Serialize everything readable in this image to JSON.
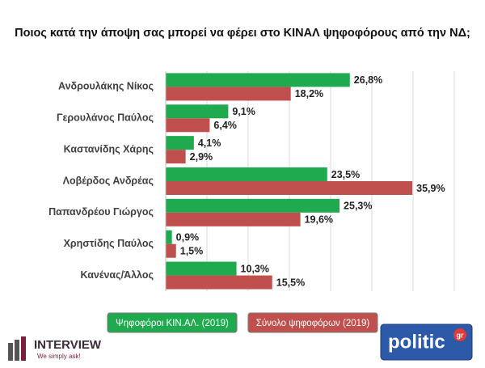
{
  "chart_data": {
    "type": "grouped-hbar",
    "title": "Ποιος κατά την άποψη σας μπορεί να φέρει στο ΚΙΝΑΛ ψηφοφόρους από την ΝΔ;",
    "categories": [
      "Ανδρουλάκης Νίκος",
      "Γερουλάνος Παύλος",
      "Καστανίδης Χάρης",
      "Λοβέρδος Ανδρέας",
      "Παπανδρέου Γιώργος",
      "Χρηστίδης Παύλος",
      "Κανένας/Άλλος"
    ],
    "series": [
      {
        "name": "Ψηφοφόροι ΚΙΝ.ΑΛ. (2019)",
        "color": "#1faa50",
        "values": [
          26.8,
          9.1,
          4.1,
          23.5,
          25.3,
          0.9,
          10.3
        ],
        "value_labels": [
          "26,8%",
          "9,1%",
          "4,1%",
          "23,5%",
          "25,3%",
          "0,9%",
          "10,3%"
        ]
      },
      {
        "name": "Σύνολο ψηφοφόρων (2019)",
        "color": "#c0504d",
        "values": [
          18.2,
          6.4,
          2.9,
          35.9,
          19.6,
          1.5,
          15.5
        ],
        "value_labels": [
          "18,2%",
          "6,4%",
          "2,9%",
          "35,9%",
          "19,6%",
          "1,5%",
          "15,5%"
        ]
      }
    ],
    "xlim": [
      0,
      42
    ],
    "xticks": [
      0,
      6,
      12,
      18,
      24,
      30,
      36,
      42
    ],
    "show_xtick_labels": false,
    "grid": true
  },
  "logos": {
    "interview": "INTERVIEW",
    "interview_tagline": "We simply ask!",
    "politic": "politic",
    "politic_suffix": "gr"
  }
}
